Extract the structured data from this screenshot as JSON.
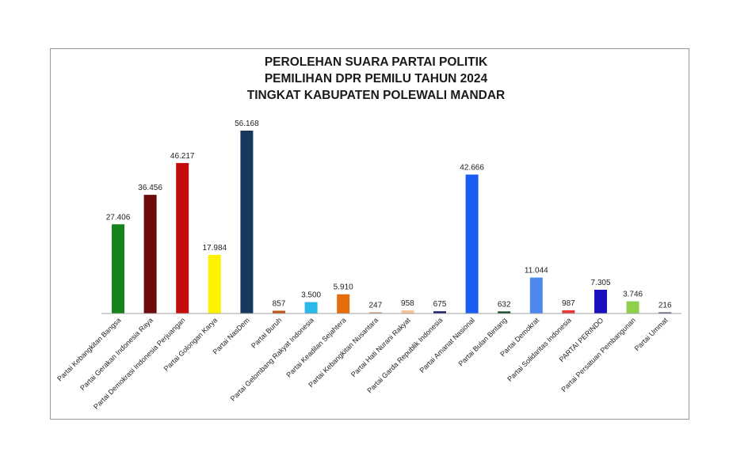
{
  "chart_data": {
    "type": "bar",
    "title": [
      "PEROLEHAN SUARA PARTAI POLITIK",
      "PEMILIHAN DPR PEMILU TAHUN 2024",
      "TINGKAT KABUPATEN POLEWALI MANDAR"
    ],
    "categories": [
      "Partai Kebangkitan Bangsa",
      "Partai Gerakan Indonesia Raya",
      "Partai Demokrasi Indonesia Perjuangan",
      "Partai Golongan Karya",
      "Partai NasDem",
      "Partai Buruh",
      "Partai Gelombang Rakyat Indonesia",
      "Partai Keadilan Sejahtera",
      "Partai Kebangkitan Nusantara",
      "Partai Hati Nurani Rakyat",
      "Partai Garda Republik Indonesia",
      "Partai Amanat Nasional",
      "Partai Bulan Bintang",
      "Partai Demokrat",
      "Partai Solidaritas Indonesia",
      "PARTAI PERINDO",
      "Partai Persatuan Pembangunan",
      "Partai Ummat"
    ],
    "values": [
      27406,
      36456,
      46217,
      17984,
      56168,
      857,
      3500,
      5910,
      247,
      958,
      675,
      42666,
      632,
      11044,
      987,
      7305,
      3746,
      216
    ],
    "value_labels": [
      "27.406",
      "36.456",
      "46.217",
      "17.984",
      "56.168",
      "857",
      "3.500",
      "5.910",
      "247",
      "958",
      "675",
      "42.666",
      "632",
      "11.044",
      "987",
      "7.305",
      "3.746",
      "216"
    ],
    "colors": [
      "#14841a",
      "#6e0a0a",
      "#c40c0c",
      "#fff200",
      "#17375e",
      "#c0561a",
      "#2ab8e8",
      "#e46c0a",
      "#c09070",
      "#f4c39a",
      "#1c1c70",
      "#1a5ef0",
      "#10461a",
      "#4c88f0",
      "#e63a3a",
      "#1a10c0",
      "#8ed04c",
      "#3c3c5c"
    ],
    "ylim": [
      0,
      60000
    ],
    "grid": false,
    "legend": "none"
  }
}
